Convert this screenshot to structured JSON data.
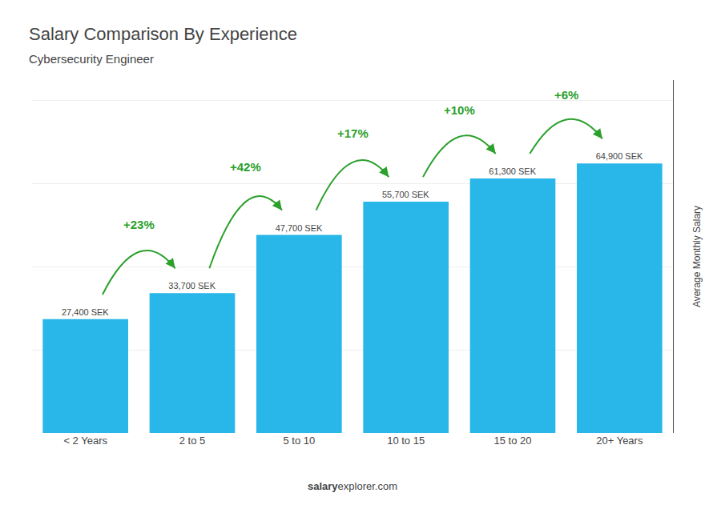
{
  "chart_data": {
    "type": "bar",
    "title": "Salary Comparison By Experience",
    "subtitle": "Cybersecurity Engineer",
    "categories": [
      "< 2 Years",
      "2 to 5",
      "5 to 10",
      "10 to 15",
      "15 to 20",
      "20+ Years"
    ],
    "values": [
      27400,
      33700,
      47700,
      55700,
      61300,
      64900
    ],
    "value_labels": [
      "27,400 SEK",
      "33,700 SEK",
      "47,700 SEK",
      "55,700 SEK",
      "61,300 SEK",
      "64,900 SEK"
    ],
    "data_labels": true,
    "color": "#29b6e8",
    "ylabel": "Average Monthly Salary",
    "ylim": [
      0,
      85000
    ],
    "yticks": [
      0,
      20000,
      40000,
      60000,
      80000
    ],
    "grid": true,
    "tick_labels": "x",
    "annotations": [
      "+23%",
      "+42%",
      "+17%",
      "+10%",
      "+6%"
    ],
    "footer": [
      "salary",
      "explorer.com"
    ]
  }
}
